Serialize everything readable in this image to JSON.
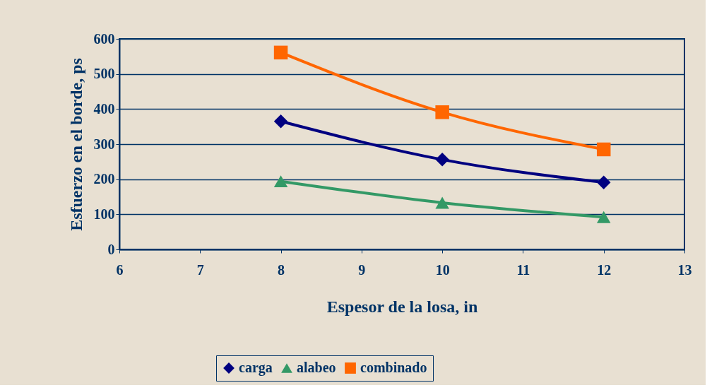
{
  "chart_data": {
    "type": "line",
    "xlabel": "Espesor de la losa, in",
    "ylabel": "Esfuerzo en el borde, ps",
    "x": [
      8,
      10,
      12
    ],
    "series": [
      {
        "name": "carga",
        "color": "#000080",
        "marker": "diamond",
        "values": [
          365,
          256,
          191
        ]
      },
      {
        "name": "alabeo",
        "color": "#339966",
        "marker": "triangle",
        "values": [
          194,
          133,
          92
        ]
      },
      {
        "name": "combinado",
        "color": "#ff6600",
        "marker": "square",
        "values": [
          561,
          391,
          285
        ]
      }
    ],
    "xlim": [
      6,
      13
    ],
    "xticks": [
      6,
      7,
      8,
      9,
      10,
      11,
      12,
      13
    ],
    "ylim": [
      0,
      600
    ],
    "yticks": [
      0,
      100,
      200,
      300,
      400,
      500,
      600
    ],
    "grid": "y",
    "legend": "bottom",
    "line_style": "solid"
  }
}
